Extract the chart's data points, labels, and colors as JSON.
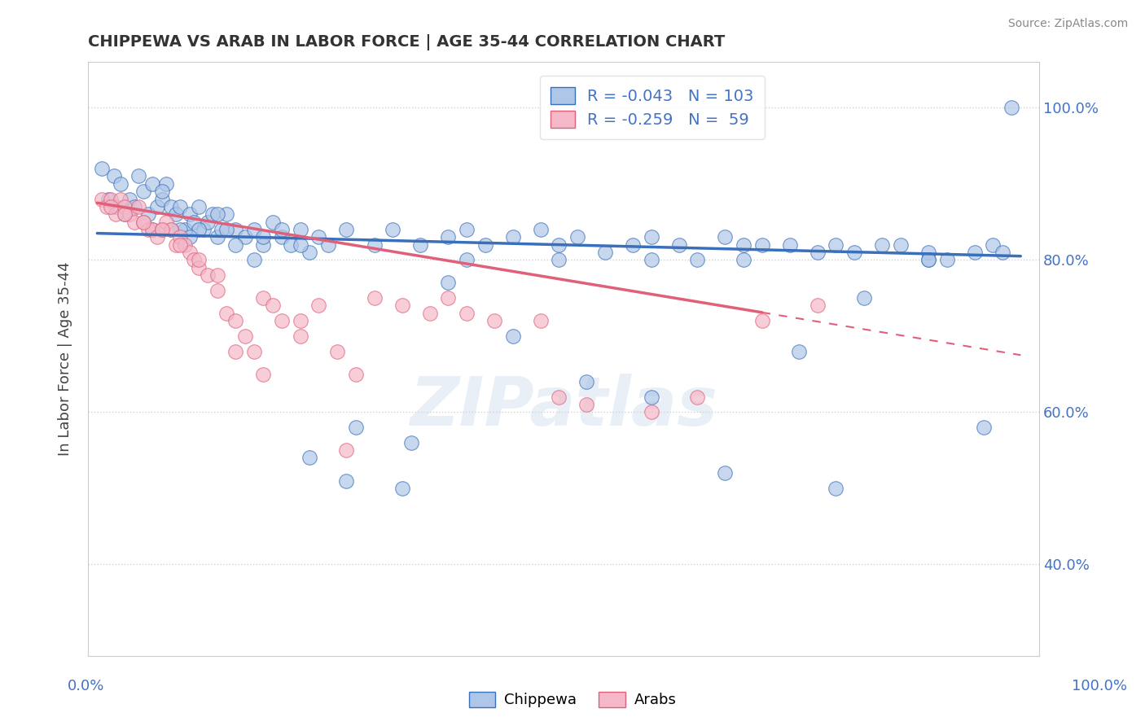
{
  "title": "CHIPPEWA VS ARAB IN LABOR FORCE | AGE 35-44 CORRELATION CHART",
  "ylabel": "In Labor Force | Age 35-44",
  "source": "Source: ZipAtlas.com",
  "watermark": "ZIPatlas",
  "legend_R1": "-0.043",
  "legend_N1": "103",
  "legend_R2": "-0.259",
  "legend_N2": "59",
  "chippewa_color": "#aec6e8",
  "arab_color": "#f4b8c8",
  "chippewa_line_color": "#3a6fba",
  "arab_line_color": "#e0607a",
  "background_color": "#ffffff",
  "grid_color": "#cccccc",
  "axis_label_color": "#4472c4",
  "title_color": "#333333",
  "chippewa_x": [
    0.005,
    0.012,
    0.018,
    0.02,
    0.025,
    0.03,
    0.035,
    0.04,
    0.045,
    0.05,
    0.055,
    0.06,
    0.065,
    0.07,
    0.075,
    0.08,
    0.085,
    0.09,
    0.095,
    0.1,
    0.105,
    0.11,
    0.115,
    0.12,
    0.125,
    0.13,
    0.135,
    0.14,
    0.15,
    0.16,
    0.17,
    0.18,
    0.19,
    0.2,
    0.21,
    0.22,
    0.23,
    0.24,
    0.25,
    0.27,
    0.3,
    0.32,
    0.35,
    0.38,
    0.4,
    0.42,
    0.45,
    0.48,
    0.5,
    0.52,
    0.55,
    0.58,
    0.6,
    0.63,
    0.65,
    0.68,
    0.7,
    0.72,
    0.75,
    0.78,
    0.8,
    0.82,
    0.85,
    0.87,
    0.9,
    0.92,
    0.95,
    0.97,
    0.98,
    0.99,
    0.07,
    0.09,
    0.11,
    0.13,
    0.15,
    0.17,
    0.2,
    0.23,
    0.27,
    0.33,
    0.38,
    0.45,
    0.53,
    0.6,
    0.68,
    0.76,
    0.83,
    0.9,
    0.96,
    0.06,
    0.08,
    0.1,
    0.14,
    0.18,
    0.22,
    0.28,
    0.34,
    0.4,
    0.5,
    0.6,
    0.7,
    0.8,
    0.9
  ],
  "chippewa_y": [
    0.92,
    0.88,
    0.91,
    0.87,
    0.9,
    0.86,
    0.88,
    0.87,
    0.91,
    0.89,
    0.86,
    0.9,
    0.87,
    0.88,
    0.9,
    0.87,
    0.86,
    0.87,
    0.84,
    0.86,
    0.85,
    0.87,
    0.84,
    0.85,
    0.86,
    0.83,
    0.84,
    0.86,
    0.84,
    0.83,
    0.84,
    0.82,
    0.85,
    0.83,
    0.82,
    0.84,
    0.81,
    0.83,
    0.82,
    0.84,
    0.82,
    0.84,
    0.82,
    0.83,
    0.84,
    0.82,
    0.83,
    0.84,
    0.82,
    0.83,
    0.81,
    0.82,
    0.83,
    0.82,
    0.8,
    0.83,
    0.82,
    0.82,
    0.82,
    0.81,
    0.82,
    0.81,
    0.82,
    0.82,
    0.81,
    0.8,
    0.81,
    0.82,
    0.81,
    1.0,
    0.89,
    0.84,
    0.84,
    0.86,
    0.82,
    0.8,
    0.84,
    0.54,
    0.51,
    0.5,
    0.77,
    0.7,
    0.64,
    0.62,
    0.52,
    0.68,
    0.75,
    0.8,
    0.58,
    0.84,
    0.84,
    0.83,
    0.84,
    0.83,
    0.82,
    0.58,
    0.56,
    0.8,
    0.8,
    0.8,
    0.8,
    0.5,
    0.8
  ],
  "arab_x": [
    0.005,
    0.01,
    0.015,
    0.02,
    0.025,
    0.03,
    0.035,
    0.04,
    0.045,
    0.05,
    0.055,
    0.06,
    0.065,
    0.07,
    0.075,
    0.08,
    0.085,
    0.09,
    0.095,
    0.1,
    0.105,
    0.11,
    0.12,
    0.13,
    0.14,
    0.15,
    0.16,
    0.17,
    0.18,
    0.19,
    0.2,
    0.22,
    0.24,
    0.26,
    0.28,
    0.3,
    0.33,
    0.36,
    0.38,
    0.4,
    0.43,
    0.48,
    0.5,
    0.53,
    0.6,
    0.65,
    0.72,
    0.78,
    0.015,
    0.03,
    0.05,
    0.07,
    0.09,
    0.11,
    0.13,
    0.15,
    0.18,
    0.22,
    0.27
  ],
  "arab_y": [
    0.88,
    0.87,
    0.88,
    0.86,
    0.88,
    0.87,
    0.86,
    0.85,
    0.87,
    0.85,
    0.84,
    0.84,
    0.83,
    0.84,
    0.85,
    0.84,
    0.82,
    0.83,
    0.82,
    0.81,
    0.8,
    0.79,
    0.78,
    0.76,
    0.73,
    0.72,
    0.7,
    0.68,
    0.75,
    0.74,
    0.72,
    0.7,
    0.74,
    0.68,
    0.65,
    0.75,
    0.74,
    0.73,
    0.75,
    0.73,
    0.72,
    0.72,
    0.62,
    0.61,
    0.6,
    0.62,
    0.72,
    0.74,
    0.87,
    0.86,
    0.85,
    0.84,
    0.82,
    0.8,
    0.78,
    0.68,
    0.65,
    0.72,
    0.55
  ],
  "arab_line_solid_end": 0.72,
  "yticks": [
    0.4,
    0.6,
    0.8,
    1.0
  ],
  "ytick_labels": [
    "40.0%",
    "60.0%",
    "80.0%",
    "100.0%"
  ],
  "ymin": 0.28,
  "ymax": 1.06,
  "xmin": -0.01,
  "xmax": 1.02,
  "chip_line_start_y": 0.835,
  "chip_line_end_y": 0.805,
  "arab_line_start_y": 0.875,
  "arab_line_end_y": 0.675
}
